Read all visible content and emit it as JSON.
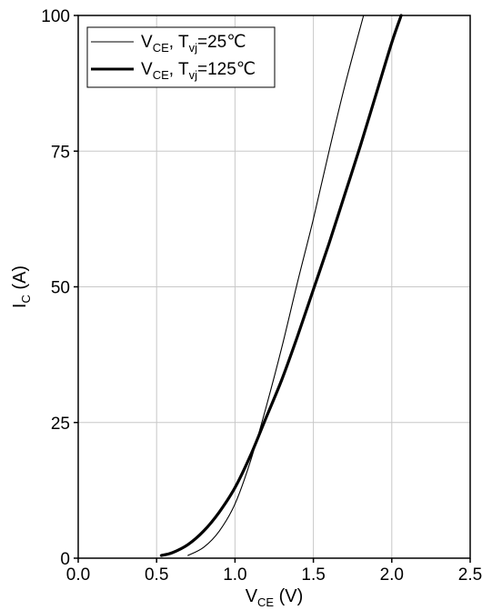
{
  "chart_data": {
    "type": "line",
    "xlabel": {
      "main": "V",
      "sub": "CE",
      "unit": " (V)"
    },
    "ylabel": {
      "main": "I",
      "sub": "C",
      "unit": " (A)"
    },
    "xlim": [
      0,
      2.5
    ],
    "ylim": [
      0,
      100
    ],
    "xticks": [
      "0.0",
      "0.5",
      "1.0",
      "1.5",
      "2.0",
      "2.5"
    ],
    "yticks": [
      "0",
      "25",
      "50",
      "75",
      "100"
    ],
    "grid": true,
    "legend_position": "top-left",
    "series": [
      {
        "legend": {
          "main": "V",
          "sub1": "CE",
          "mid": ", T",
          "sub2": "vj",
          "suffix": "=25℃"
        },
        "style": "thin",
        "color": "#000000",
        "x": [
          0.7,
          0.8,
          0.9,
          1.0,
          1.1,
          1.2,
          1.3,
          1.4,
          1.5,
          1.6,
          1.7,
          1.82
        ],
        "y": [
          0.5,
          2.0,
          5.0,
          10.0,
          18.0,
          28.0,
          39.0,
          51.0,
          62.5,
          75.0,
          87.0,
          100.0
        ]
      },
      {
        "legend": {
          "main": "V",
          "sub1": "CE",
          "mid": ", T",
          "sub2": "vj",
          "suffix": "=125℃"
        },
        "style": "thick",
        "color": "#000000",
        "x": [
          0.53,
          0.6,
          0.7,
          0.8,
          0.9,
          1.0,
          1.1,
          1.2,
          1.3,
          1.4,
          1.5,
          1.6,
          1.7,
          1.8,
          1.9,
          2.0,
          2.06
        ],
        "y": [
          0.5,
          1.0,
          2.5,
          5.0,
          8.5,
          13.0,
          19.0,
          26.0,
          33.0,
          41.0,
          49.5,
          58.0,
          67.0,
          76.0,
          85.5,
          95.0,
          100.0
        ]
      }
    ]
  }
}
